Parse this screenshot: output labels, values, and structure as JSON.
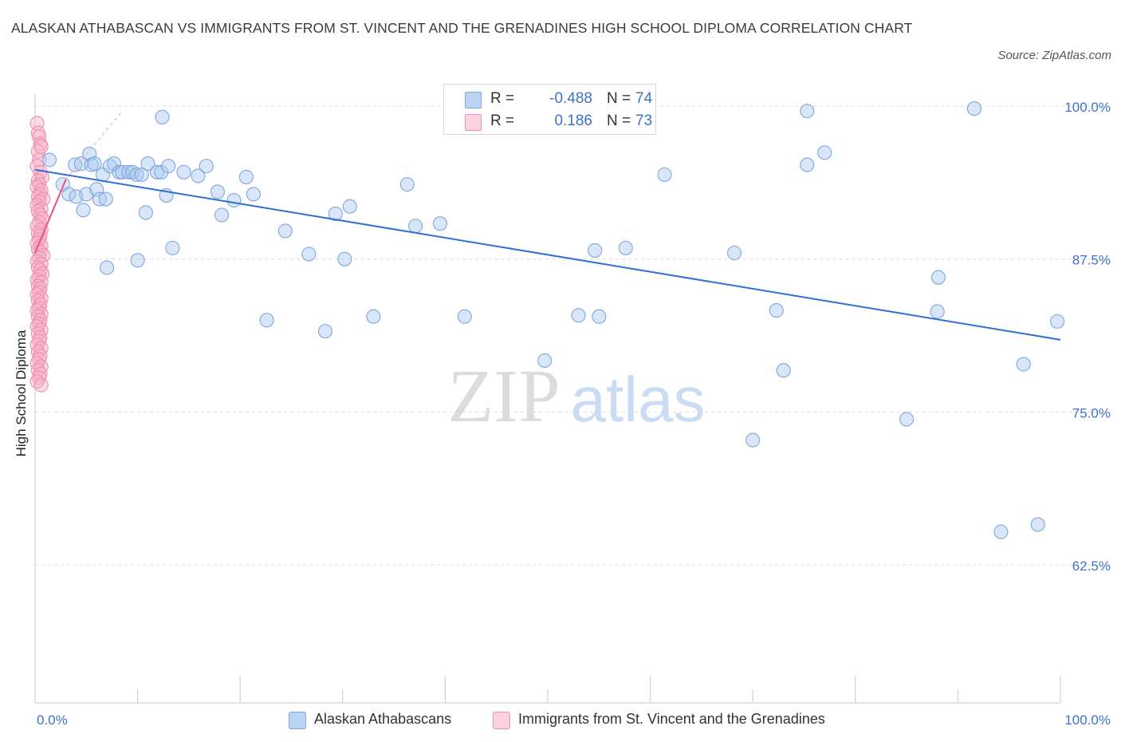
{
  "title": "ALASKAN ATHABASCAN VS IMMIGRANTS FROM ST. VINCENT AND THE GRENADINES HIGH SCHOOL DIPLOMA CORRELATION CHART",
  "source": "Source: ZipAtlas.com",
  "watermark": {
    "zip": "ZIP",
    "atlas": "atlas"
  },
  "legend_top": {
    "rows": [
      {
        "r_label": "R =",
        "r_value": "-0.488",
        "n_label": "N =",
        "n_value": "74"
      },
      {
        "r_label": "R =",
        "r_value": "0.186",
        "n_label": "N =",
        "n_value": "73"
      }
    ]
  },
  "legend_bottom": {
    "items": [
      {
        "label": "Alaskan Athabascans"
      },
      {
        "label": "Immigrants from St. Vincent and the Grenadines"
      }
    ]
  },
  "colors": {
    "blue_fill": "#a9c8f0",
    "blue_stroke": "#7ea7de",
    "blue_line": "#2f6fcf",
    "pink_fill": "#f6b2c8",
    "pink_stroke": "#ee8fb0",
    "pink_line": "#e8507e",
    "tick_label": "#3d73c7",
    "grid": "#dcdcdc"
  },
  "chart_data": {
    "type": "scatter",
    "title": "ALASKAN ATHABASCAN VS IMMIGRANTS FROM ST. VINCENT AND THE GRENADINES HIGH SCHOOL DIPLOMA CORRELATION CHART",
    "xlabel": "",
    "ylabel": "High School Diploma",
    "xlim": [
      0,
      100
    ],
    "ylim": [
      51,
      102
    ],
    "x_tick_labels": [
      "0.0%",
      "100.0%"
    ],
    "y_ticks": [
      62.5,
      75.0,
      87.5,
      100.0
    ],
    "y_tick_labels": [
      "62.5%",
      "75.0%",
      "87.5%",
      "100.0%"
    ],
    "grid": true,
    "legend_position": "top-center",
    "series": [
      {
        "name": "Alaskan Athabascans",
        "color": "blue",
        "r": -0.488,
        "n": 74,
        "trend": {
          "x": [
            0,
            100
          ],
          "y": [
            94.8,
            80.9
          ]
        },
        "points": [
          [
            1.4,
            95.6
          ],
          [
            2.7,
            93.6
          ],
          [
            3.3,
            92.8
          ],
          [
            3.9,
            95.2
          ],
          [
            4.0,
            92.6
          ],
          [
            4.5,
            95.3
          ],
          [
            4.7,
            91.5
          ],
          [
            5.0,
            92.8
          ],
          [
            5.3,
            96.1
          ],
          [
            5.5,
            95.2
          ],
          [
            5.8,
            95.3
          ],
          [
            6.0,
            93.2
          ],
          [
            6.3,
            92.4
          ],
          [
            6.6,
            94.4
          ],
          [
            6.9,
            92.4
          ],
          [
            7.0,
            86.8
          ],
          [
            7.3,
            95.1
          ],
          [
            7.7,
            95.3
          ],
          [
            8.2,
            94.6
          ],
          [
            8.5,
            94.6
          ],
          [
            9.1,
            94.6
          ],
          [
            9.5,
            94.6
          ],
          [
            9.9,
            94.4
          ],
          [
            10.4,
            94.4
          ],
          [
            11.0,
            95.3
          ],
          [
            11.9,
            94.6
          ],
          [
            12.3,
            94.6
          ],
          [
            13.0,
            95.1
          ],
          [
            13.4,
            88.4
          ],
          [
            14.5,
            94.6
          ],
          [
            15.9,
            94.3
          ],
          [
            10.0,
            87.4
          ],
          [
            10.8,
            91.3
          ],
          [
            12.4,
            99.1
          ],
          [
            12.8,
            92.7
          ],
          [
            16.7,
            95.1
          ],
          [
            17.8,
            93.0
          ],
          [
            18.2,
            91.1
          ],
          [
            19.4,
            92.3
          ],
          [
            20.6,
            94.2
          ],
          [
            21.3,
            92.8
          ],
          [
            22.6,
            82.5
          ],
          [
            24.4,
            89.8
          ],
          [
            26.7,
            87.9
          ],
          [
            28.3,
            81.6
          ],
          [
            29.3,
            91.2
          ],
          [
            30.2,
            87.5
          ],
          [
            30.7,
            91.8
          ],
          [
            33.0,
            82.8
          ],
          [
            36.3,
            93.6
          ],
          [
            37.1,
            90.2
          ],
          [
            39.5,
            90.4
          ],
          [
            41.9,
            82.8
          ],
          [
            49.7,
            79.2
          ],
          [
            53.0,
            82.9
          ],
          [
            54.6,
            88.2
          ],
          [
            55.0,
            82.8
          ],
          [
            57.6,
            88.4
          ],
          [
            61.4,
            94.4
          ],
          [
            68.2,
            88.0
          ],
          [
            70.0,
            72.7
          ],
          [
            72.3,
            83.3
          ],
          [
            73.0,
            78.4
          ],
          [
            75.3,
            95.2
          ],
          [
            75.3,
            99.6
          ],
          [
            77.0,
            96.2
          ],
          [
            85.0,
            74.4
          ],
          [
            88.0,
            83.2
          ],
          [
            88.1,
            86.0
          ],
          [
            91.6,
            99.8
          ],
          [
            94.2,
            65.2
          ],
          [
            96.4,
            78.9
          ],
          [
            97.8,
            65.8
          ],
          [
            99.7,
            82.4
          ]
        ]
      },
      {
        "name": "Immigrants from St. Vincent and the Grenadines",
        "color": "pink",
        "r": 0.186,
        "n": 73,
        "trend": {
          "x": [
            0,
            3.0
          ],
          "y": [
            88.0,
            94.0
          ]
        },
        "points": [
          [
            0.2,
            98.6
          ],
          [
            0.3,
            97.8
          ],
          [
            0.4,
            97.5
          ],
          [
            0.5,
            96.9
          ],
          [
            0.3,
            96.3
          ],
          [
            0.6,
            96.7
          ],
          [
            0.4,
            95.6
          ],
          [
            0.2,
            95.1
          ],
          [
            0.5,
            94.6
          ],
          [
            0.7,
            94.2
          ],
          [
            0.3,
            93.9
          ],
          [
            0.4,
            93.6
          ],
          [
            0.2,
            93.4
          ],
          [
            0.6,
            93.1
          ],
          [
            0.5,
            92.8
          ],
          [
            0.3,
            92.6
          ],
          [
            0.8,
            92.4
          ],
          [
            0.4,
            92.2
          ],
          [
            0.2,
            91.9
          ],
          [
            0.6,
            91.6
          ],
          [
            0.3,
            91.4
          ],
          [
            0.5,
            91.1
          ],
          [
            0.7,
            90.8
          ],
          [
            0.4,
            90.5
          ],
          [
            0.2,
            90.2
          ],
          [
            0.6,
            89.9
          ],
          [
            0.3,
            89.6
          ],
          [
            0.5,
            89.4
          ],
          [
            0.4,
            89.1
          ],
          [
            0.2,
            88.8
          ],
          [
            0.6,
            88.6
          ],
          [
            0.3,
            88.3
          ],
          [
            0.5,
            88.1
          ],
          [
            0.8,
            87.8
          ],
          [
            0.4,
            87.6
          ],
          [
            0.2,
            87.3
          ],
          [
            0.6,
            87.1
          ],
          [
            0.3,
            86.8
          ],
          [
            0.5,
            86.6
          ],
          [
            0.7,
            86.3
          ],
          [
            0.4,
            86.1
          ],
          [
            0.2,
            85.8
          ],
          [
            0.6,
            85.6
          ],
          [
            0.3,
            85.3
          ],
          [
            0.5,
            85.1
          ],
          [
            0.4,
            84.8
          ],
          [
            0.2,
            84.6
          ],
          [
            0.6,
            84.3
          ],
          [
            0.3,
            84.1
          ],
          [
            0.5,
            83.8
          ],
          [
            0.4,
            83.5
          ],
          [
            0.2,
            83.3
          ],
          [
            0.6,
            83.0
          ],
          [
            0.3,
            82.8
          ],
          [
            0.5,
            82.5
          ],
          [
            0.4,
            82.2
          ],
          [
            0.2,
            82.0
          ],
          [
            0.6,
            81.7
          ],
          [
            0.3,
            81.4
          ],
          [
            0.5,
            81.1
          ],
          [
            0.4,
            80.8
          ],
          [
            0.2,
            80.5
          ],
          [
            0.6,
            80.2
          ],
          [
            0.3,
            79.9
          ],
          [
            0.5,
            79.6
          ],
          [
            0.4,
            79.3
          ],
          [
            0.2,
            79.0
          ],
          [
            0.6,
            78.7
          ],
          [
            0.3,
            78.4
          ],
          [
            0.5,
            78.1
          ],
          [
            0.4,
            77.8
          ],
          [
            0.2,
            77.5
          ],
          [
            0.6,
            77.2
          ]
        ]
      }
    ]
  }
}
